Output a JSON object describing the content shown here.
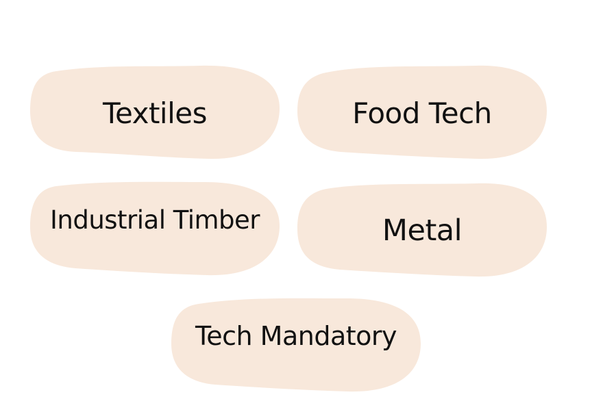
{
  "colors": {
    "card_fill": "#f8e8db",
    "text": "#111111",
    "background": "#ffffff"
  },
  "cards": [
    {
      "label": "Textiles"
    },
    {
      "label": "Food Tech"
    },
    {
      "label": "Industrial Timber"
    },
    {
      "label": "Metal"
    },
    {
      "label": "Tech Mandatory"
    }
  ]
}
